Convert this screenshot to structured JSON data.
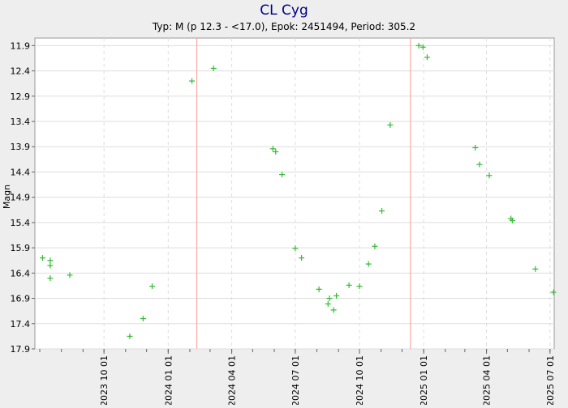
{
  "chart_data": {
    "type": "scatter",
    "title": "CL Cyg",
    "subtitle": "Typ: M (p 12.3 - <17.0), Epok: 2451494, Period: 305.2",
    "ylabel": "Magn",
    "xlabel": "",
    "y_inverted": true,
    "ylim": [
      11.75,
      17.9
    ],
    "xlim": [
      "2023-06-24",
      "2025-07-07"
    ],
    "grid": true,
    "y_ticks": [
      "11.9",
      "12.4",
      "12.9",
      "13.4",
      "13.9",
      "14.4",
      "14.9",
      "15.4",
      "15.9",
      "16.4",
      "16.9",
      "17.4",
      "17.9"
    ],
    "x_ticks": [
      "2023 10 01",
      "2024 01 01",
      "2024 04 01",
      "2024 07 01",
      "2024 10 01",
      "2025 01 01",
      "2025 04 01",
      "2025 07 01"
    ],
    "x_tick_dates": [
      "2023-10-01",
      "2024-01-01",
      "2024-04-01",
      "2024-07-01",
      "2024-10-01",
      "2025-01-01",
      "2025-04-01",
      "2025-07-01"
    ],
    "maxima_lines": [
      "2024-02-11",
      "2024-12-13"
    ],
    "colors": {
      "points": "#33bb33",
      "grid": "#dddddd",
      "maxima": "#ff9999",
      "title": "#00008b"
    },
    "series": [
      {
        "points": [
          {
            "date": "2023-07-05",
            "mag": 16.1
          },
          {
            "date": "2023-07-16",
            "mag": 16.15
          },
          {
            "date": "2023-07-16",
            "mag": 16.25
          },
          {
            "date": "2023-07-16",
            "mag": 16.5
          },
          {
            "date": "2023-08-13",
            "mag": 16.44
          },
          {
            "date": "2023-11-07",
            "mag": 17.65
          },
          {
            "date": "2023-11-26",
            "mag": 17.3
          },
          {
            "date": "2023-12-09",
            "mag": 16.66
          },
          {
            "date": "2024-02-04",
            "mag": 12.6
          },
          {
            "date": "2024-03-06",
            "mag": 12.35
          },
          {
            "date": "2024-05-30",
            "mag": 13.94
          },
          {
            "date": "2024-06-03",
            "mag": 14.0
          },
          {
            "date": "2024-06-12",
            "mag": 14.45
          },
          {
            "date": "2024-07-01",
            "mag": 15.91
          },
          {
            "date": "2024-07-10",
            "mag": 16.1
          },
          {
            "date": "2024-08-04",
            "mag": 16.72
          },
          {
            "date": "2024-08-17",
            "mag": 17.01
          },
          {
            "date": "2024-08-19",
            "mag": 16.9
          },
          {
            "date": "2024-08-25",
            "mag": 17.13
          },
          {
            "date": "2024-08-29",
            "mag": 16.85
          },
          {
            "date": "2024-09-16",
            "mag": 16.64
          },
          {
            "date": "2024-10-01",
            "mag": 16.66
          },
          {
            "date": "2024-10-14",
            "mag": 16.22
          },
          {
            "date": "2024-10-23",
            "mag": 15.87
          },
          {
            "date": "2024-11-02",
            "mag": 15.17
          },
          {
            "date": "2024-11-14",
            "mag": 13.47
          },
          {
            "date": "2024-12-25",
            "mag": 11.9
          },
          {
            "date": "2024-12-31",
            "mag": 11.93
          },
          {
            "date": "2025-01-06",
            "mag": 12.13
          },
          {
            "date": "2025-03-16",
            "mag": 13.92
          },
          {
            "date": "2025-03-22",
            "mag": 14.25
          },
          {
            "date": "2025-04-05",
            "mag": 14.47
          },
          {
            "date": "2025-05-06",
            "mag": 15.32
          },
          {
            "date": "2025-05-08",
            "mag": 15.36
          },
          {
            "date": "2025-06-10",
            "mag": 16.32
          },
          {
            "date": "2025-07-06",
            "mag": 16.78
          }
        ]
      }
    ]
  }
}
